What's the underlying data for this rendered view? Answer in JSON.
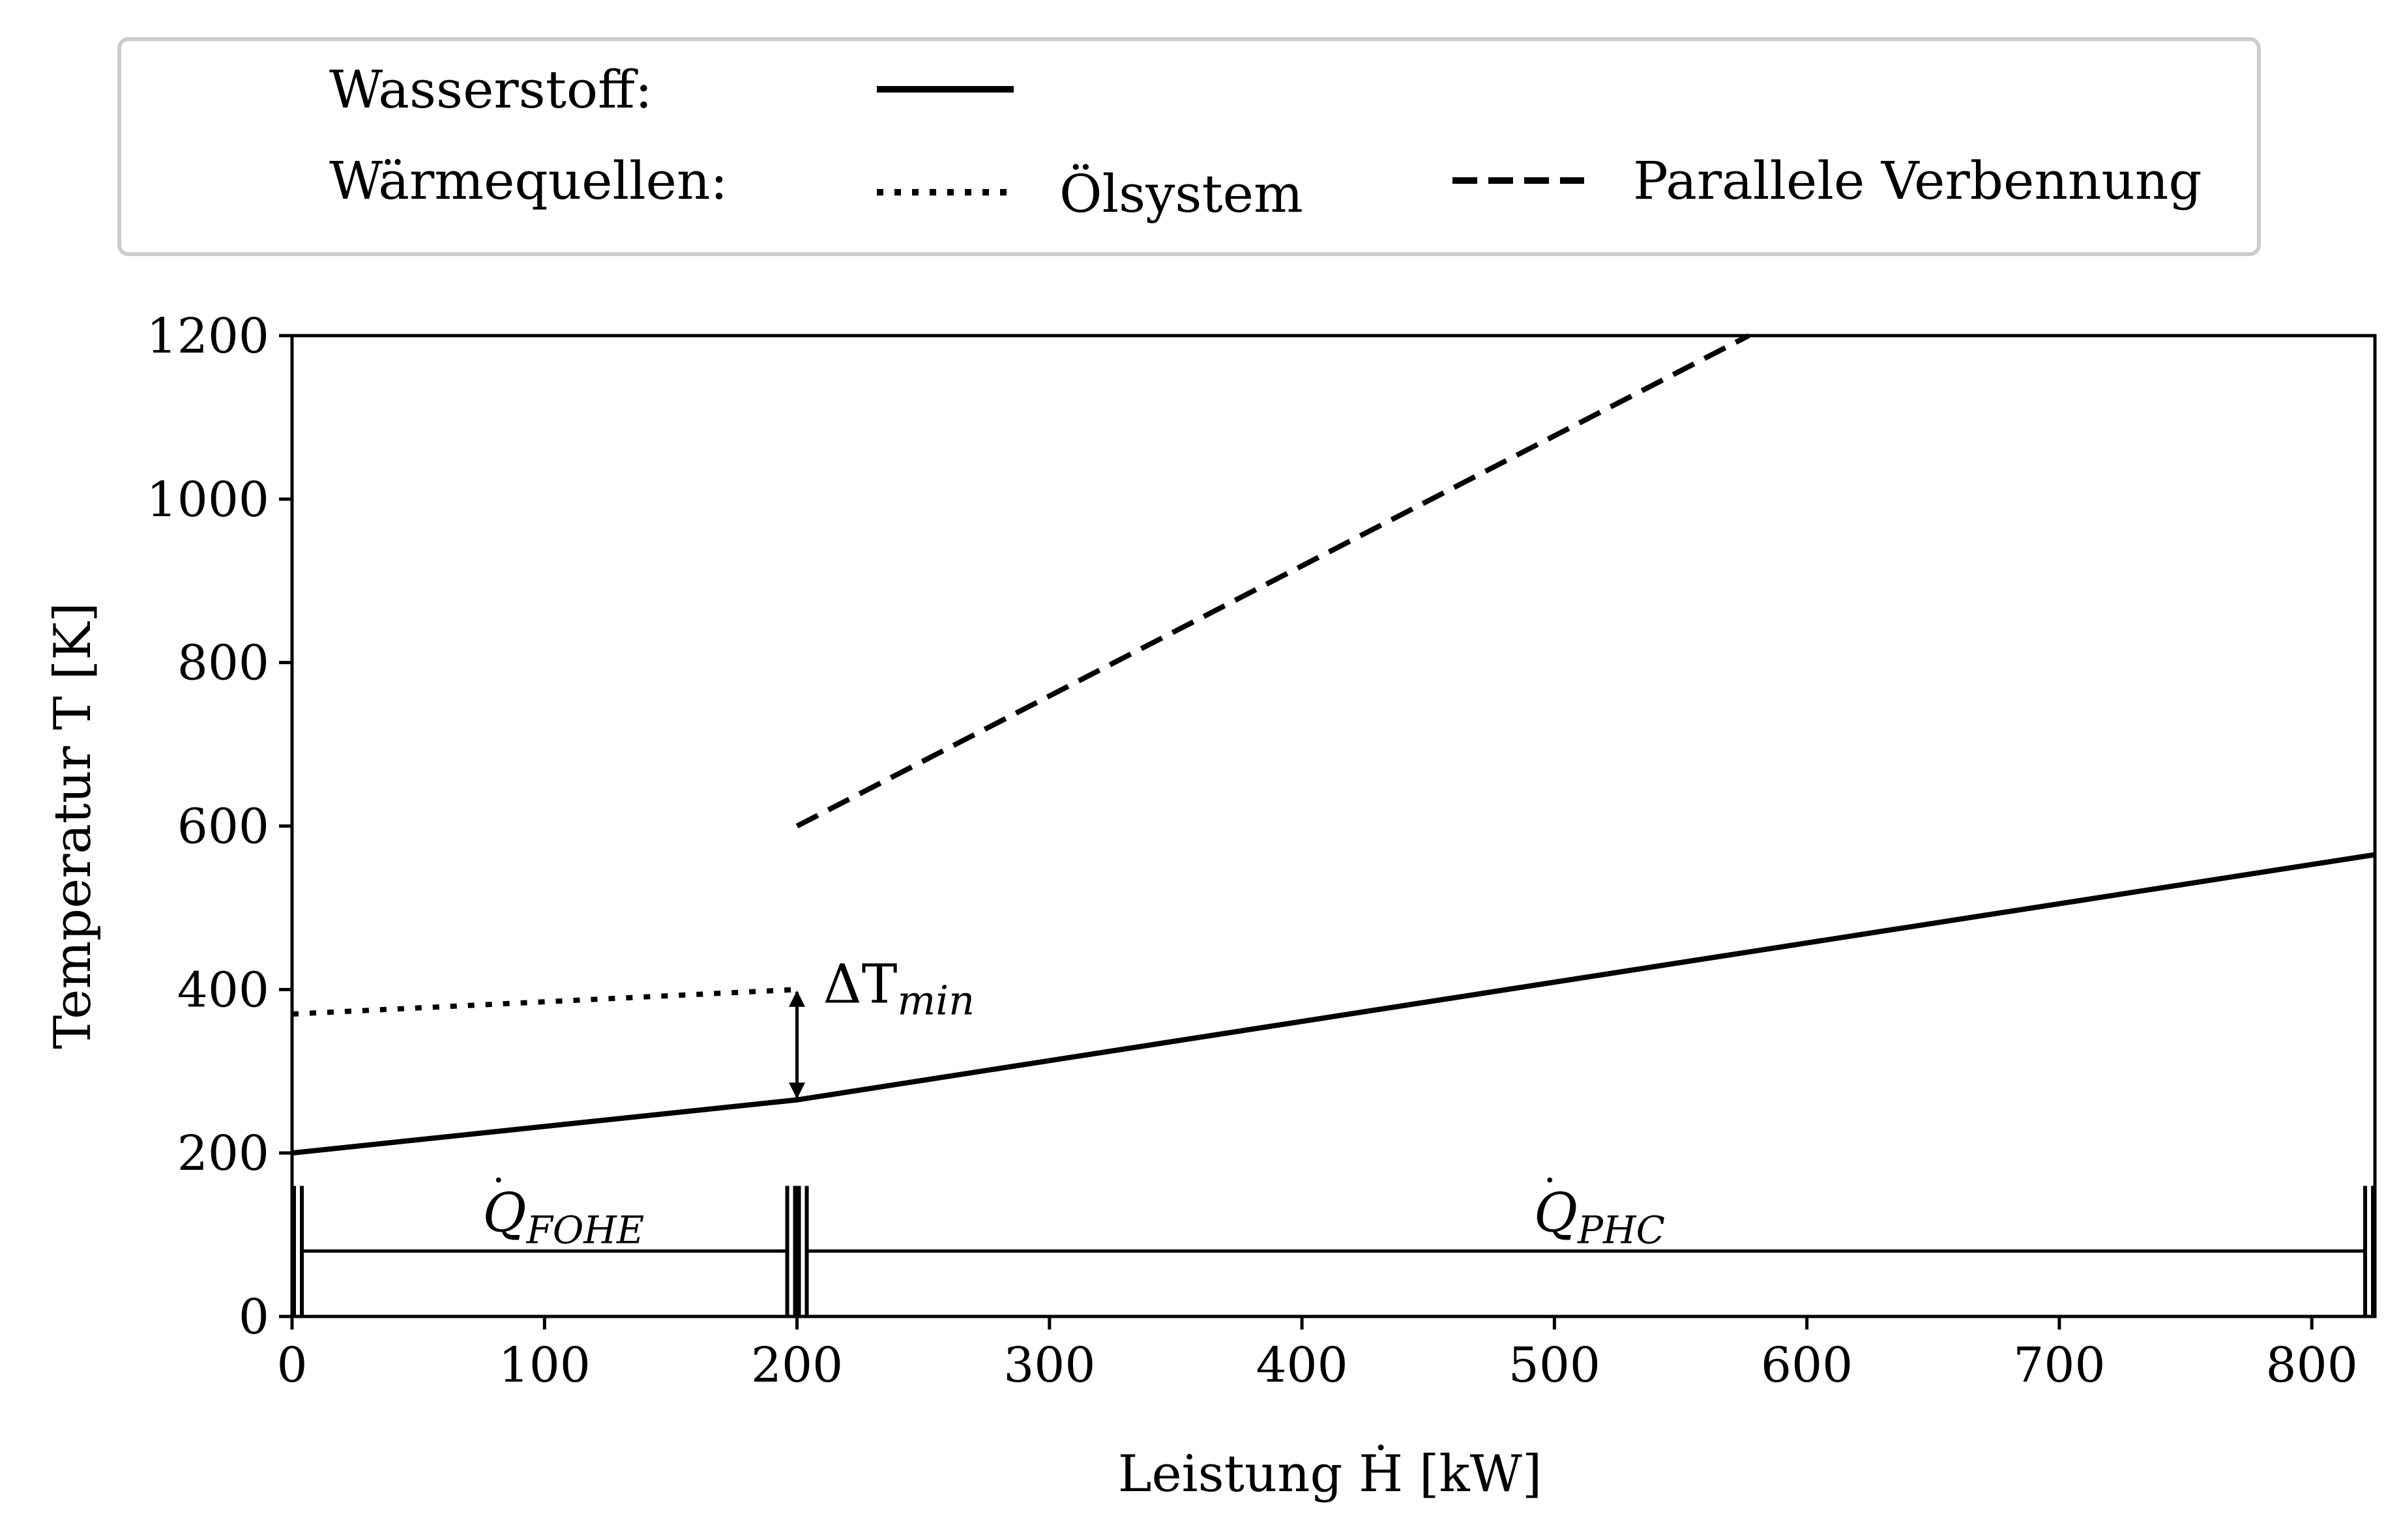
{
  "chart_data": {
    "type": "line",
    "xlabel": "Leistung Ḣ [kW]",
    "ylabel": "Temperatur T [K]",
    "xlim": [
      0,
      825
    ],
    "ylim": [
      0,
      1200
    ],
    "xticks": [
      "0",
      "100",
      "200",
      "300",
      "400",
      "500",
      "600",
      "700",
      "800"
    ],
    "yticks": [
      "0",
      "200",
      "400",
      "600",
      "800",
      "1000",
      "1200"
    ],
    "grid": false,
    "legend": {
      "placement": "top",
      "row1_label": "Wasserstoff:",
      "row2_label": "Wärmequellen:",
      "entries": [
        "Ölsystem",
        "Parallele Verbennung"
      ]
    },
    "series": [
      {
        "name": "Wasserstoff",
        "style": "solid",
        "x": [
          0,
          200,
          825
        ],
        "y": [
          200,
          265,
          565
        ]
      },
      {
        "name": "Ölsystem",
        "style": "dotted",
        "x": [
          0,
          200
        ],
        "y": [
          370,
          400
        ]
      },
      {
        "name": "Parallele Verbennung",
        "style": "dashed",
        "x": [
          200,
          577
        ],
        "y": [
          600,
          1200
        ]
      }
    ],
    "annotations": {
      "delta_t": "ΔT",
      "delta_t_sub": "min",
      "delta_t_x": 200,
      "delta_t_y": [
        265,
        400
      ],
      "q_fohe": "Q",
      "q_fohe_sub": "FOHE",
      "q_fohe_range": [
        0,
        200
      ],
      "q_phc": "Q",
      "q_phc_sub": "PHC",
      "q_phc_range": [
        200,
        825
      ],
      "bracket_y": 80
    },
    "colors": {
      "line": "#000000",
      "legend_border": "#cccccc"
    }
  }
}
